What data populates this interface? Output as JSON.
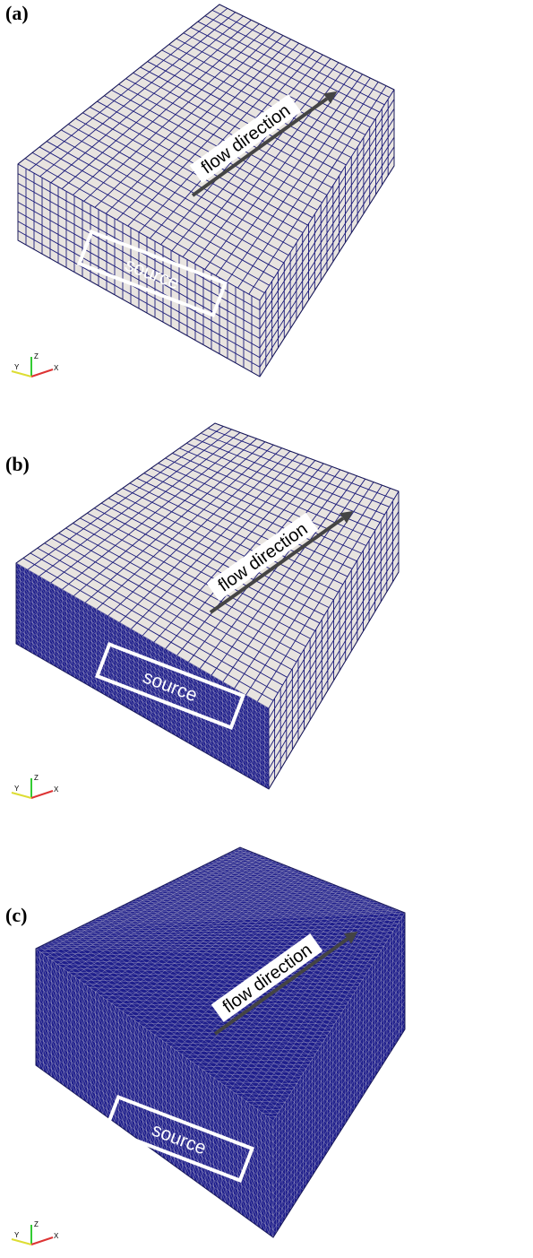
{
  "panels": [
    {
      "label": "(a)",
      "arrow_label": "flow direction",
      "source_label": "source",
      "axes": {
        "x": "X",
        "y": "Y",
        "z": "Z"
      }
    },
    {
      "label": "(b)",
      "arrow_label": "flow direction",
      "source_label": "source",
      "axes": {
        "x": "X",
        "y": "Y",
        "z": "Z"
      }
    },
    {
      "label": "(c)",
      "arrow_label": "flow direction",
      "source_label": "source",
      "axes": {
        "x": "X",
        "y": "Y",
        "z": "Z"
      }
    }
  ]
}
